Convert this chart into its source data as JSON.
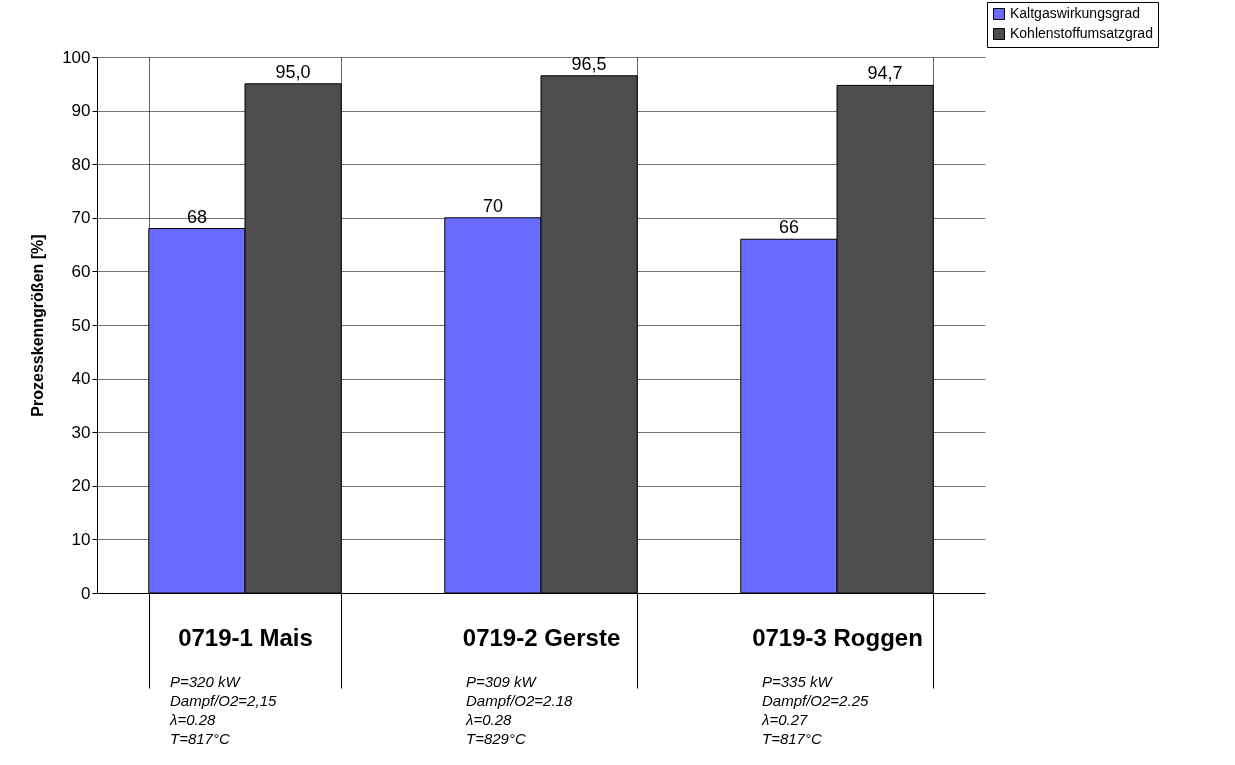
{
  "chart_data": {
    "type": "bar",
    "ylabel": "Prozesskenngrößen [%]",
    "categories": [
      "0719-1 Mais",
      "0719-2 Gerste",
      "0719-3 Roggen"
    ],
    "series": [
      {
        "name": "Kaltgaswirkungsgrad",
        "color": "#6b6bff",
        "values": [
          68,
          70,
          66
        ],
        "value_labels": [
          "68",
          "70",
          "66"
        ]
      },
      {
        "name": "Kohlenstoffumsatzgrad",
        "color": "#4d4d4d",
        "values": [
          95.0,
          96.5,
          94.7
        ],
        "value_labels": [
          "95,0",
          "96,5",
          "94,7"
        ]
      }
    ],
    "ylim": [
      0,
      100
    ],
    "yticks": [
      0,
      10,
      20,
      30,
      40,
      50,
      60,
      70,
      80,
      90,
      100
    ],
    "grid": true,
    "legend": "top right",
    "annotations": [
      "P=320 kW\nDampf/O2=2,15\nλ=0.28\nT=817°C",
      "P=309 kW\nDampf/O2=2.18\nλ=0.28\nT=829°C",
      "P=335 kW\nDampf/O2=2.25\nλ=0.27\nT=817°C"
    ]
  }
}
